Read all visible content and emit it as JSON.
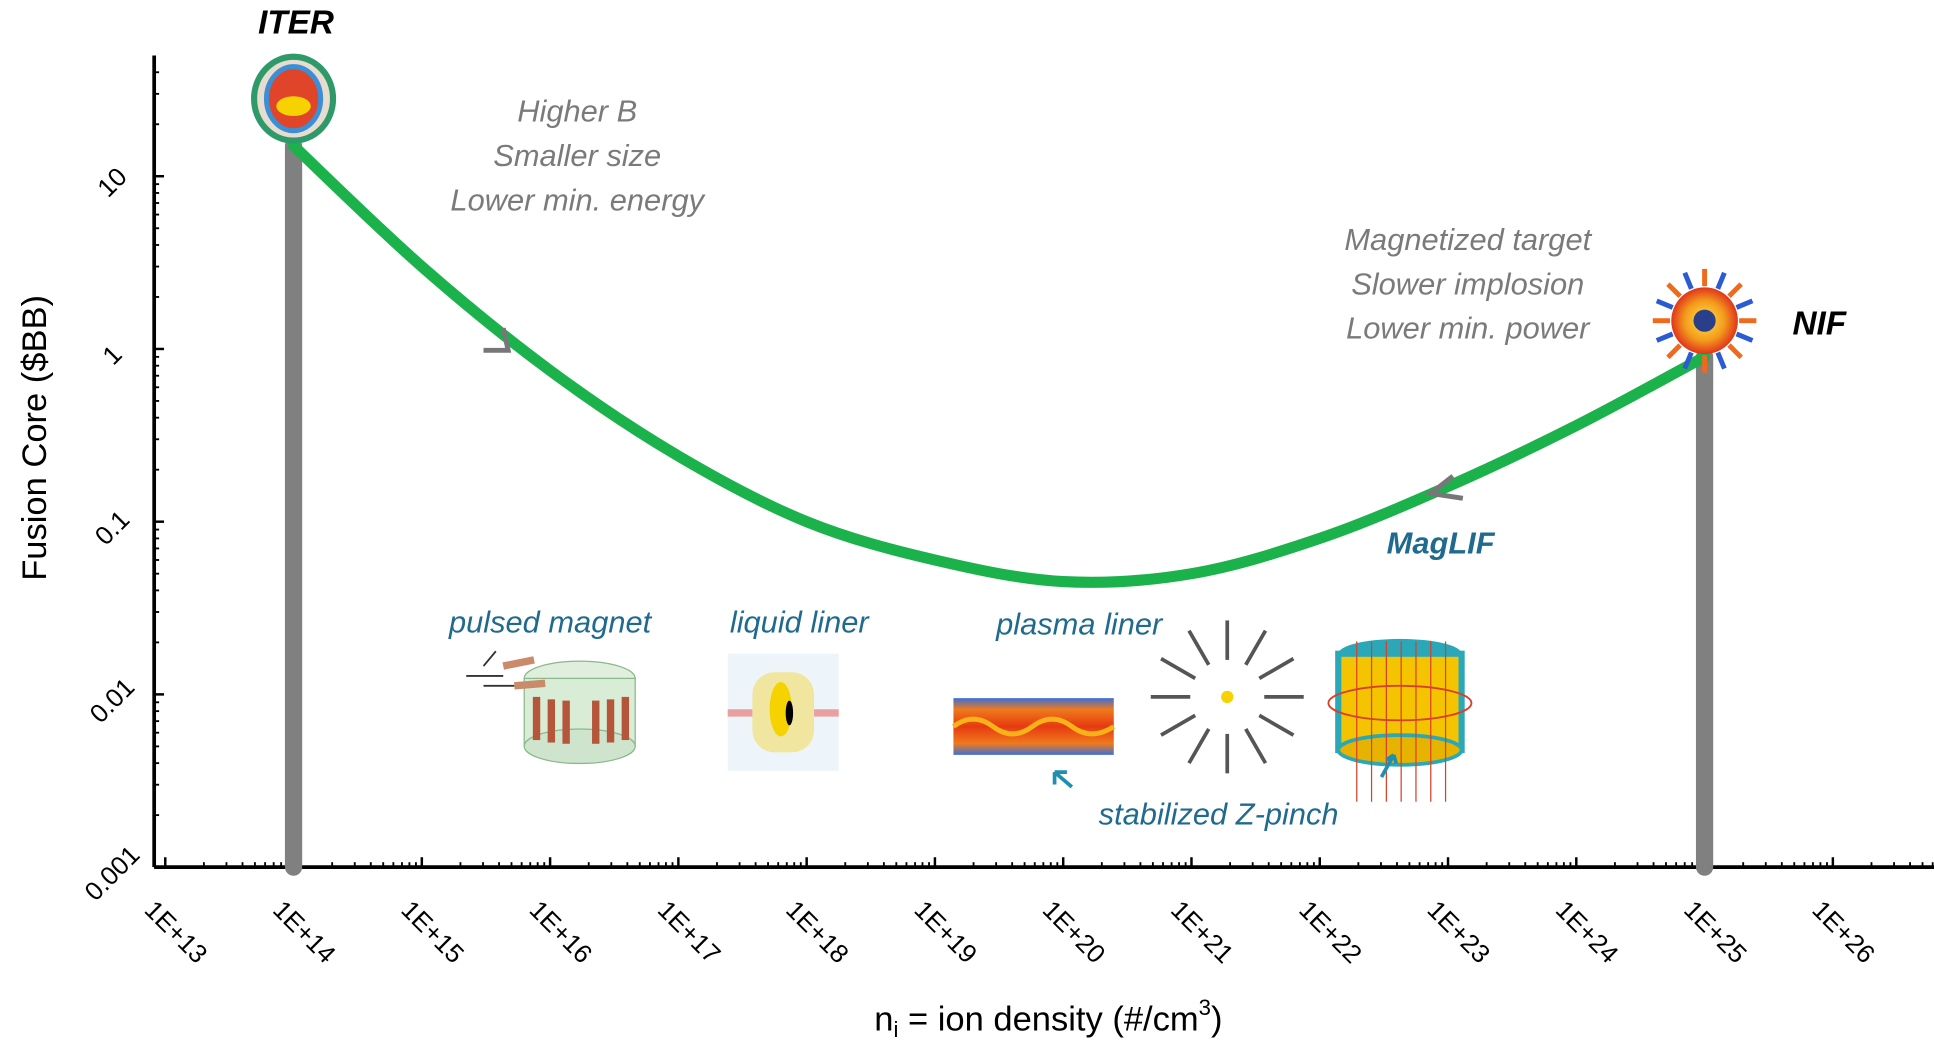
{
  "chart_data": {
    "type": "line",
    "y_label": "Fusion Core ($BB)",
    "x_label": {
      "main": "n",
      "sub": "i",
      "rest": " = ion density (#/cm",
      "sup": "3",
      "end": ")"
    },
    "x": [
      100000000000000.0,
      1000000000000000.0,
      1e+16,
      1e+17,
      1e+18,
      1e+19,
      1e+20,
      1e+21,
      1e+22,
      1e+23,
      1e+24,
      1e+25
    ],
    "series": [
      {
        "color": "#1bb24b",
        "values": [
          15,
          3,
          0.75,
          0.24,
          0.1,
          0.06,
          0.045,
          0.05,
          0.08,
          0.16,
          0.36,
          0.9
        ]
      }
    ],
    "log_x": true,
    "log_y": true,
    "xlim": [
      10000000000000.0,
      1e+27
    ],
    "ylim": [
      0.001,
      50
    ],
    "xticks": [
      {
        "value": 10000000000000.0,
        "label": "1E+13"
      },
      {
        "value": 100000000000000.0,
        "label": "1E+14"
      },
      {
        "value": 1000000000000000.0,
        "label": "1E+15"
      },
      {
        "value": 1e+16,
        "label": "1E+16"
      },
      {
        "value": 1e+17,
        "label": "1E+17"
      },
      {
        "value": 1e+18,
        "label": "1E+18"
      },
      {
        "value": 1e+19,
        "label": "1E+19"
      },
      {
        "value": 1e+20,
        "label": "1E+20"
      },
      {
        "value": 1e+21,
        "label": "1E+21"
      },
      {
        "value": 1e+22,
        "label": "1E+22"
      },
      {
        "value": 1e+23,
        "label": "1E+23"
      },
      {
        "value": 1e+24,
        "label": "1E+24"
      },
      {
        "value": 1e+25,
        "label": "1E+25"
      },
      {
        "value": 1e+26,
        "label": "1E+26"
      }
    ],
    "yticks": [
      0.001,
      0.01,
      0.1,
      1,
      10
    ],
    "endpoints": [
      {
        "label": "ITER"
      },
      {
        "label": "NIF"
      }
    ],
    "annotations": [
      {
        "lines": [
          "Higher B",
          "Smaller size",
          "Lower min. energy"
        ]
      },
      {
        "lines": [
          "Magnetized target",
          "Slower implosion",
          "Lower min. power"
        ]
      },
      {
        "lines": [
          "MagLIF"
        ]
      },
      {
        "lines": [
          "pulsed magnet"
        ]
      },
      {
        "lines": [
          "liquid liner"
        ]
      },
      {
        "lines": [
          "plasma liner"
        ]
      },
      {
        "lines": [
          "stabilized Z-pinch"
        ]
      }
    ]
  }
}
